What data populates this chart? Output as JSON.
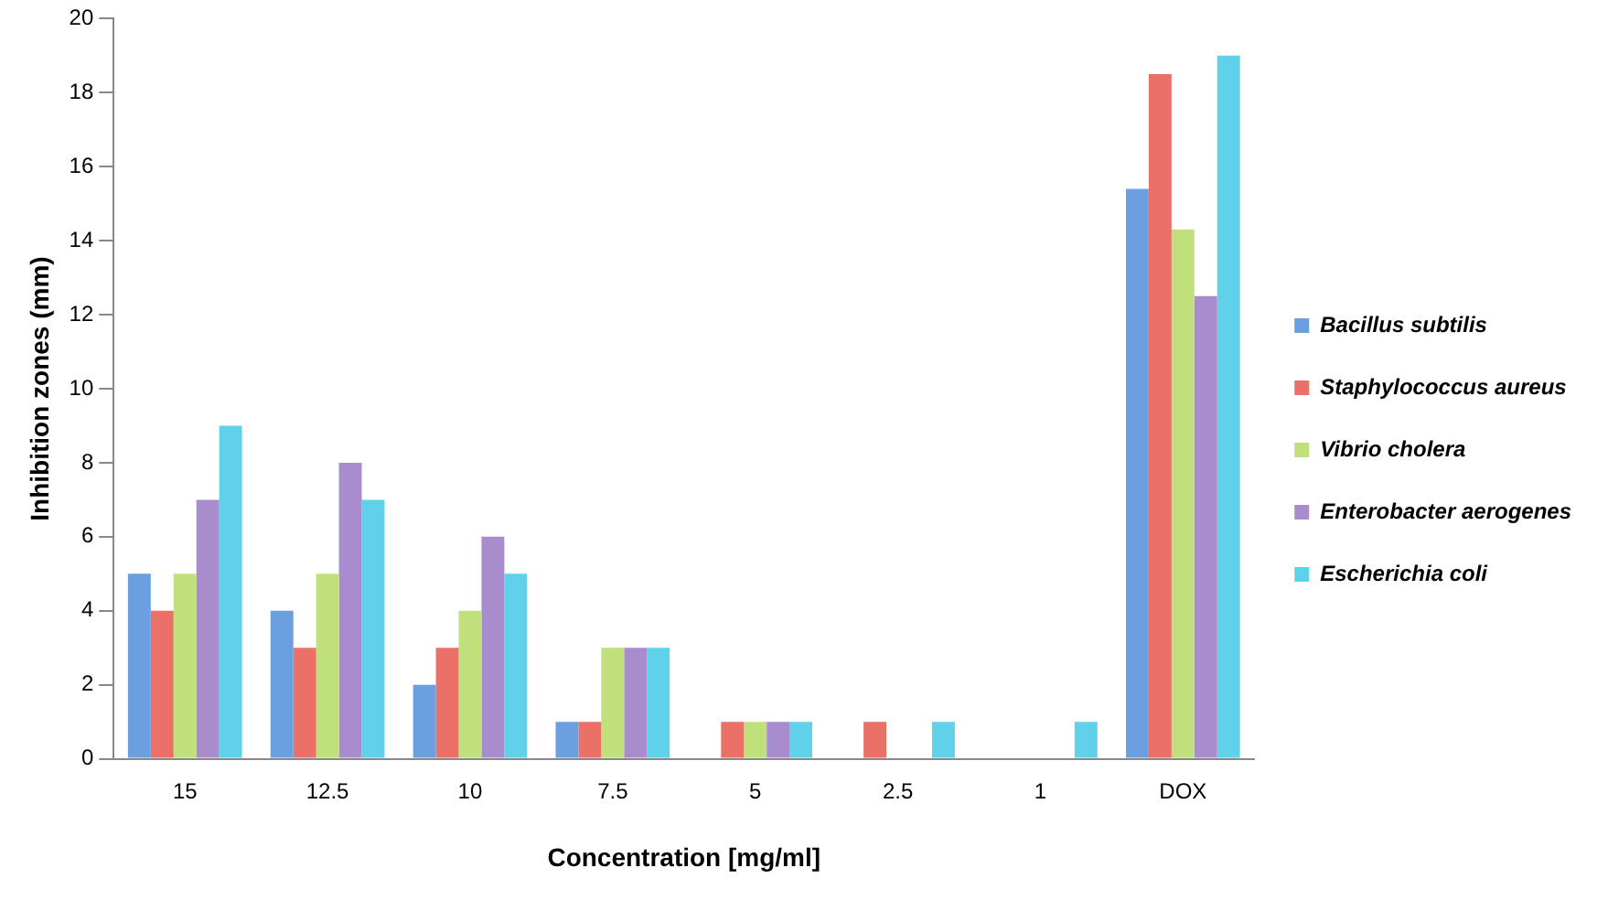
{
  "chart_data": {
    "type": "bar",
    "xlabel": "Concentration [mg/ml]",
    "ylabel": "Inhibition zones (mm)",
    "categories": [
      "15",
      "12.5",
      "10",
      "7.5",
      "5",
      "2.5",
      "1",
      "DOX"
    ],
    "series": [
      {
        "name": "Bacillus subtilis",
        "color": "#6b9fe0",
        "values": [
          5,
          4,
          2,
          1,
          0,
          0,
          0,
          15.4
        ]
      },
      {
        "name": "Staphylococcus aureus",
        "color": "#ea7068",
        "values": [
          4,
          3,
          3,
          1,
          1,
          1,
          0,
          18.5
        ]
      },
      {
        "name": "Vibrio cholera",
        "color": "#bfe07a",
        "values": [
          5,
          5,
          4,
          3,
          1,
          0,
          0,
          14.3
        ]
      },
      {
        "name": "Enterobacter aerogenes",
        "color": "#a98cce",
        "values": [
          7,
          8,
          6,
          3,
          1,
          0,
          0,
          12.5
        ]
      },
      {
        "name": "Escherichia coli",
        "color": "#5fd2ea",
        "values": [
          9,
          7,
          5,
          3,
          1,
          1,
          1,
          19
        ]
      }
    ],
    "ylim": [
      0,
      20
    ],
    "yticks": [
      0,
      2,
      4,
      6,
      8,
      10,
      12,
      14,
      16,
      18,
      20
    ],
    "grid": false,
    "legend": "right"
  }
}
